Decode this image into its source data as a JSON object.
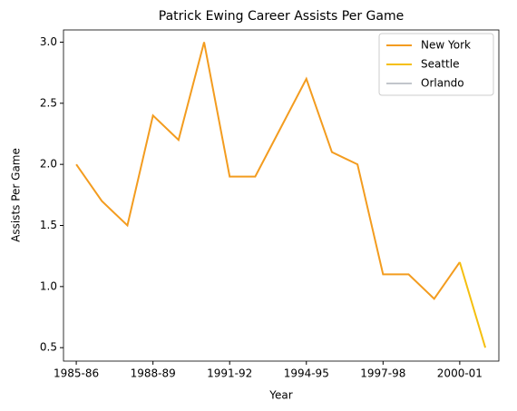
{
  "chart_data": {
    "type": "line",
    "title": "Patrick Ewing Career Assists Per Game",
    "x_label": "Year",
    "y_label": "Assists Per Game",
    "categories": [
      "1985-86",
      null,
      null,
      "1988-89",
      null,
      null,
      "1991-92",
      null,
      null,
      "1994-95",
      null,
      null,
      "1997-98",
      null,
      null,
      "2000-01",
      null
    ],
    "series": [
      {
        "name": "New York",
        "color": "#f39c1f",
        "values": [
          2.0,
          1.7,
          1.5,
          2.4,
          2.2,
          3.0,
          1.9,
          1.9,
          2.3,
          2.7,
          2.1,
          2.0,
          1.1,
          1.1,
          0.9,
          1.2,
          null
        ]
      },
      {
        "name": "Seattle",
        "color": "#f5bf0f",
        "values": [
          null,
          null,
          null,
          null,
          null,
          null,
          null,
          null,
          null,
          null,
          null,
          null,
          null,
          null,
          null,
          1.2,
          0.5
        ]
      },
      {
        "name": "Orlando",
        "color": "#c2c6cc",
        "values": [
          null,
          null,
          null,
          null,
          null,
          null,
          null,
          null,
          null,
          null,
          null,
          null,
          null,
          null,
          null,
          null,
          0.5
        ]
      }
    ],
    "ylim": [
      0.39,
      3.1
    ],
    "yticks": [
      0.5,
      1.0,
      1.5,
      2.0,
      2.5,
      3.0
    ],
    "yticks_labels": [
      "0.5",
      "1.0",
      "1.5",
      "2.0",
      "2.5",
      "3.0"
    ],
    "legend": "upper right",
    "grid": false
  }
}
